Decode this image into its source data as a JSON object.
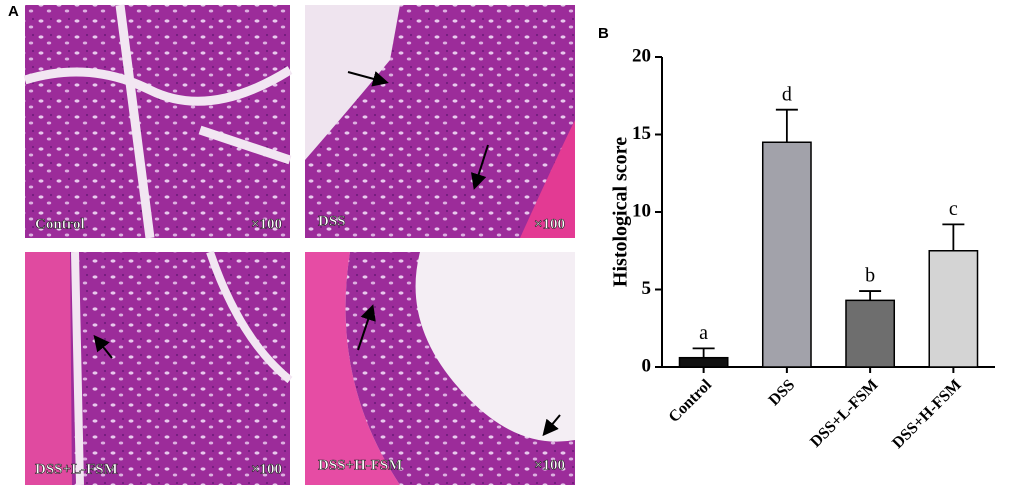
{
  "panel_a": {
    "label": "A",
    "images": [
      {
        "caption": "Control",
        "magnification": "×100"
      },
      {
        "caption": "DSS",
        "magnification": "×100"
      },
      {
        "caption": "DSS+L-FSM",
        "magnification": "×100"
      },
      {
        "caption": "DSS+H-FSM",
        "magnification": "×100"
      }
    ]
  },
  "chart_data": {
    "type": "bar",
    "panel_label": "B",
    "y_label": "Histological score",
    "categories": [
      "Control",
      "DSS",
      "DSS+L-FSM",
      "DSS+H-FSM"
    ],
    "values": [
      0.6,
      14.5,
      4.3,
      7.5
    ],
    "errors": [
      0.6,
      2.1,
      0.6,
      1.7
    ],
    "annotations": [
      "a",
      "d",
      "b",
      "c"
    ],
    "colors": [
      "#111111",
      "#a2a2aa",
      "#6e6e6e",
      "#d4d4d4"
    ],
    "ylim": [
      0,
      20
    ],
    "yticks": [
      0,
      5,
      10,
      15,
      20
    ]
  }
}
